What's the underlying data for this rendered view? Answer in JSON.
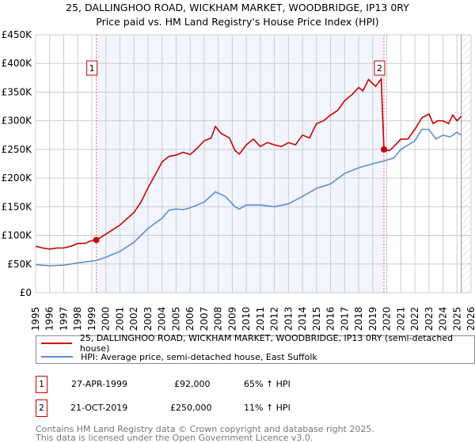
{
  "chart_data": {
    "type": "line",
    "title": "25, DALLINGHOO ROAD, WICKHAM MARKET, WOODBRIDGE, IP13 0RY",
    "subtitle": "Price paid vs. HM Land Registry's House Price Index (HPI)",
    "xlim": [
      1995,
      2026
    ],
    "ylim": [
      0,
      450000
    ],
    "x_ticks": [
      "1995",
      "1996",
      "1997",
      "1998",
      "1999",
      "2000",
      "2001",
      "2002",
      "2003",
      "2004",
      "2005",
      "2006",
      "2007",
      "2008",
      "2009",
      "2010",
      "2011",
      "2012",
      "2013",
      "2014",
      "2015",
      "2016",
      "2017",
      "2018",
      "2019",
      "2020",
      "2021",
      "2022",
      "2023",
      "2024",
      "2025",
      "2026"
    ],
    "y_ticks": [
      {
        "v": 0,
        "label": "£0"
      },
      {
        "v": 50000,
        "label": "£50K"
      },
      {
        "v": 100000,
        "label": "£100K"
      },
      {
        "v": 150000,
        "label": "£150K"
      },
      {
        "v": 200000,
        "label": "£200K"
      },
      {
        "v": 250000,
        "label": "£250K"
      },
      {
        "v": 300000,
        "label": "£300K"
      },
      {
        "v": 350000,
        "label": "£350K"
      },
      {
        "v": 400000,
        "label": "£400K"
      },
      {
        "v": 450000,
        "label": "£450K"
      }
    ],
    "grid": true,
    "shaded_range": [
      1999.32,
      2019.8
    ],
    "hatched_from": 2025.3,
    "series": [
      {
        "name": "25, DALLINGHOO ROAD, WICKHAM MARKET, WOODBRIDGE, IP13 0RY (semi-detached house)",
        "color": "#cc0000",
        "points": [
          [
            1995,
            81
          ],
          [
            1995.5,
            78
          ],
          [
            1996,
            76
          ],
          [
            1996.5,
            78
          ],
          [
            1997,
            78
          ],
          [
            1997.5,
            81
          ],
          [
            1998,
            86
          ],
          [
            1998.5,
            86
          ],
          [
            1999,
            91
          ],
          [
            1999.32,
            92
          ],
          [
            2000,
            102
          ],
          [
            2001,
            118
          ],
          [
            2002,
            140
          ],
          [
            2002.5,
            158
          ],
          [
            2003,
            183
          ],
          [
            2003.5,
            205
          ],
          [
            2004,
            228
          ],
          [
            2004.5,
            238
          ],
          [
            2005,
            240
          ],
          [
            2005.5,
            245
          ],
          [
            2006,
            241
          ],
          [
            2006.5,
            252
          ],
          [
            2007,
            265
          ],
          [
            2007.5,
            270
          ],
          [
            2007.8,
            290
          ],
          [
            2008.2,
            278
          ],
          [
            2008.8,
            270
          ],
          [
            2009.2,
            248
          ],
          [
            2009.5,
            242
          ],
          [
            2010,
            258
          ],
          [
            2010.5,
            268
          ],
          [
            2011,
            255
          ],
          [
            2011.5,
            262
          ],
          [
            2012,
            258
          ],
          [
            2012.5,
            255
          ],
          [
            2013,
            262
          ],
          [
            2013.5,
            258
          ],
          [
            2014,
            275
          ],
          [
            2014.5,
            270
          ],
          [
            2015,
            295
          ],
          [
            2015.5,
            300
          ],
          [
            2016,
            310
          ],
          [
            2016.5,
            318
          ],
          [
            2017,
            335
          ],
          [
            2017.5,
            345
          ],
          [
            2018,
            358
          ],
          [
            2018.3,
            352
          ],
          [
            2018.7,
            372
          ],
          [
            2019.2,
            360
          ],
          [
            2019.6,
            373
          ],
          [
            2019.8,
            250
          ],
          [
            2020.2,
            248
          ],
          [
            2020.5,
            255
          ],
          [
            2021,
            268
          ],
          [
            2021.5,
            268
          ],
          [
            2022,
            285
          ],
          [
            2022.5,
            305
          ],
          [
            2023,
            312
          ],
          [
            2023.3,
            295
          ],
          [
            2023.6,
            300
          ],
          [
            2024,
            300
          ],
          [
            2024.4,
            295
          ],
          [
            2024.7,
            310
          ],
          [
            2025,
            300
          ],
          [
            2025.3,
            308
          ]
        ]
      },
      {
        "name": "HPI: Average price, semi-detached house, East Suffolk",
        "color": "#5b8fd4",
        "points": [
          [
            1995,
            49
          ],
          [
            1996,
            47
          ],
          [
            1997,
            48
          ],
          [
            1998,
            52
          ],
          [
            1999,
            55
          ],
          [
            1999.32,
            56
          ],
          [
            2000,
            62
          ],
          [
            2001,
            72
          ],
          [
            2002,
            88
          ],
          [
            2003,
            112
          ],
          [
            2004,
            130
          ],
          [
            2004.5,
            144
          ],
          [
            2005,
            146
          ],
          [
            2005.5,
            145
          ],
          [
            2006,
            148
          ],
          [
            2007,
            158
          ],
          [
            2007.8,
            176
          ],
          [
            2008.5,
            168
          ],
          [
            2009.2,
            150
          ],
          [
            2009.5,
            146
          ],
          [
            2010,
            153
          ],
          [
            2011,
            153
          ],
          [
            2012,
            150
          ],
          [
            2013,
            155
          ],
          [
            2014,
            168
          ],
          [
            2015,
            182
          ],
          [
            2016,
            190
          ],
          [
            2017,
            208
          ],
          [
            2018,
            218
          ],
          [
            2019,
            225
          ],
          [
            2019.8,
            230
          ],
          [
            2020.5,
            235
          ],
          [
            2021,
            250
          ],
          [
            2022,
            265
          ],
          [
            2022.5,
            285
          ],
          [
            2023,
            285
          ],
          [
            2023.5,
            268
          ],
          [
            2024,
            275
          ],
          [
            2024.5,
            272
          ],
          [
            2025,
            280
          ],
          [
            2025.3,
            275
          ]
        ]
      }
    ],
    "value_unit": "thousands GBP",
    "annotations": [
      {
        "label": "1",
        "x": 1999.32,
        "y": 92
      },
      {
        "label": "2",
        "x": 2019.8,
        "y": 250
      }
    ]
  },
  "legend": {
    "red": "25, DALLINGHOO ROAD, WICKHAM MARKET, WOODBRIDGE, IP13 0RY (semi-detached house)",
    "blue": "HPI: Average price, semi-detached house, East Suffolk"
  },
  "sales": [
    {
      "num": "1",
      "date": "27-APR-1999",
      "price": "£92,000",
      "hpi": "65% ↑ HPI"
    },
    {
      "num": "2",
      "date": "21-OCT-2019",
      "price": "£250,000",
      "hpi": "11% ↑ HPI"
    }
  ],
  "footer": {
    "line1": "Contains HM Land Registry data © Crown copyright and database right 2025.",
    "line2": "This data is licensed under the Open Government Licence v3.0."
  }
}
